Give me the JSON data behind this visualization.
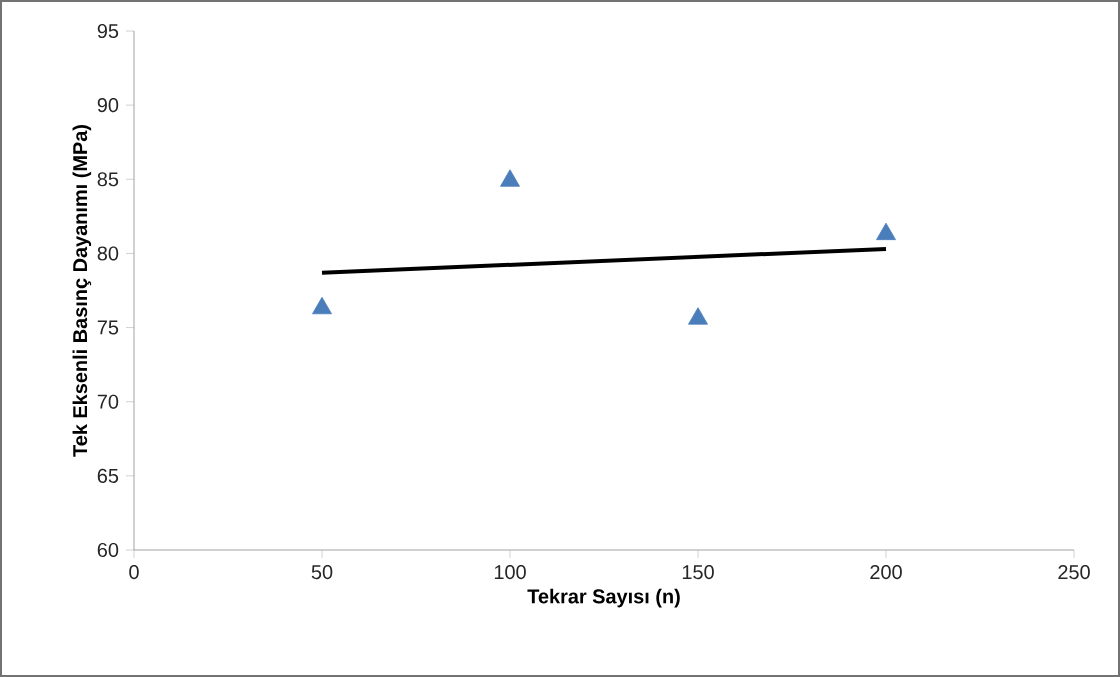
{
  "chart_data": {
    "type": "scatter",
    "xlabel": "Tekrar Sayısı (n)",
    "ylabel": "Tek Eksenli Basınç Dayanımı (MPa)",
    "marker": "triangle",
    "grid": false,
    "xlim": [
      0,
      250
    ],
    "xticks": [
      0,
      50,
      100,
      150,
      200,
      250
    ],
    "ylim": [
      60,
      95
    ],
    "yticks": [
      60,
      65,
      70,
      75,
      80,
      85,
      90,
      95
    ],
    "series": [
      {
        "color": "#4a7ebb",
        "x": [
          50,
          100,
          150,
          200
        ],
        "values": [
          76.3,
          84.9,
          75.6,
          81.3
        ]
      },
      {
        "type": "line",
        "marker": "none",
        "color": "#000000",
        "x": [
          50,
          200
        ],
        "values": [
          78.7,
          80.3
        ]
      }
    ]
  }
}
